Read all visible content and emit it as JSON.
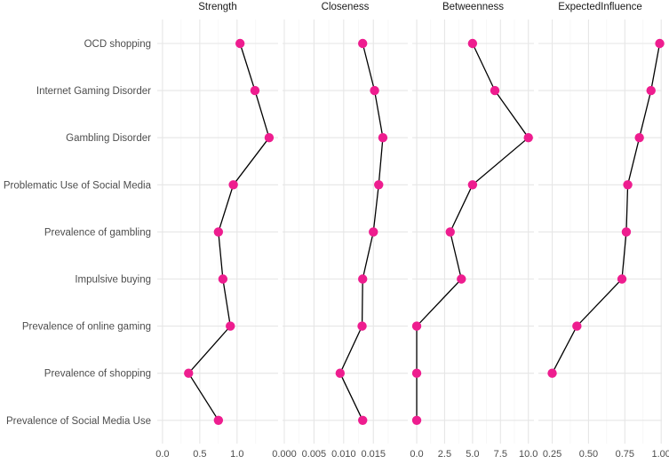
{
  "chart_data": {
    "type": "line",
    "layout": "faceted-dot-line",
    "colors": {
      "point": "#ee1d8f",
      "line": "#000000",
      "grid": "#e6e6e6"
    },
    "categories": [
      "OCD shopping",
      "Internet Gaming Disorder",
      "Gambling Disorder",
      "Problematic Use of Social Media",
      "Prevalence of gambling",
      "Impulsive buying",
      "Prevalence of online gaming",
      "Prevalence of shopping",
      "Prevalence of Social Media Use"
    ],
    "panels": [
      {
        "name": "Strength",
        "xlim": [
          -0.07,
          1.55
        ],
        "ticks": [
          0.0,
          0.5,
          1.0
        ],
        "tick_labels": [
          "0.0",
          "0.5",
          "1.0"
        ],
        "values": [
          1.04,
          1.24,
          1.43,
          0.95,
          0.75,
          0.81,
          0.91,
          0.35,
          0.75
        ]
      },
      {
        "name": "Closeness",
        "xlim": [
          -0.0003,
          0.0208
        ],
        "ticks": [
          0.0,
          0.005,
          0.01,
          0.015
        ],
        "tick_labels": [
          "0.000",
          "0.005",
          "0.010",
          "0.015"
        ],
        "values": [
          0.0132,
          0.0152,
          0.0166,
          0.0159,
          0.015,
          0.0132,
          0.0131,
          0.0094,
          0.0132
        ]
      },
      {
        "name": "Betweenness",
        "xlim": [
          -0.4,
          10.5
        ],
        "ticks": [
          0.0,
          2.5,
          5.0,
          7.5,
          10.0
        ],
        "tick_labels": [
          "0.0",
          "2.5",
          "5.0",
          "7.5",
          "10.0"
        ],
        "values": [
          5.0,
          7.0,
          10.0,
          5.0,
          3.0,
          4.0,
          0.0,
          0.0,
          0.0
        ]
      },
      {
        "name": "ExpectedInfluence",
        "xlim": [
          0.155,
          1.005
        ],
        "ticks": [
          0.25,
          0.5,
          0.75,
          1.0
        ],
        "tick_labels": [
          "0.25",
          "0.50",
          "0.75",
          "1.00"
        ],
        "values": [
          0.99,
          0.93,
          0.85,
          0.77,
          0.76,
          0.73,
          0.42,
          0.25,
          null
        ]
      }
    ]
  }
}
